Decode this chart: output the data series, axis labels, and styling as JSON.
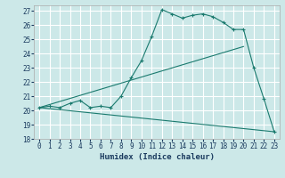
{
  "xlabel": "Humidex (Indice chaleur)",
  "bg_color": "#cce8e8",
  "grid_color": "#ffffff",
  "line_color": "#1a7a6e",
  "xlim": [
    -0.5,
    23.5
  ],
  "ylim": [
    18,
    27.4
  ],
  "xticks": [
    0,
    1,
    2,
    3,
    4,
    5,
    6,
    7,
    8,
    9,
    10,
    11,
    12,
    13,
    14,
    15,
    16,
    17,
    18,
    19,
    20,
    21,
    22,
    23
  ],
  "yticks": [
    18,
    19,
    20,
    21,
    22,
    23,
    24,
    25,
    26,
    27
  ],
  "curve1_x": [
    0,
    1,
    2,
    3,
    4,
    5,
    6,
    7,
    8,
    9,
    10,
    11,
    12,
    13,
    14,
    15,
    16,
    17,
    18,
    19,
    20,
    21,
    22,
    23
  ],
  "curve1_y": [
    20.2,
    20.3,
    20.2,
    20.5,
    20.7,
    20.2,
    20.3,
    20.2,
    21.0,
    22.3,
    23.5,
    25.2,
    27.1,
    26.8,
    26.5,
    26.7,
    26.8,
    26.6,
    26.2,
    25.7,
    25.7,
    23.0,
    20.8,
    18.5
  ],
  "curve2_x": [
    0,
    20
  ],
  "curve2_y": [
    20.2,
    24.5
  ],
  "curve3_x": [
    0,
    23
  ],
  "curve3_y": [
    20.2,
    18.5
  ]
}
